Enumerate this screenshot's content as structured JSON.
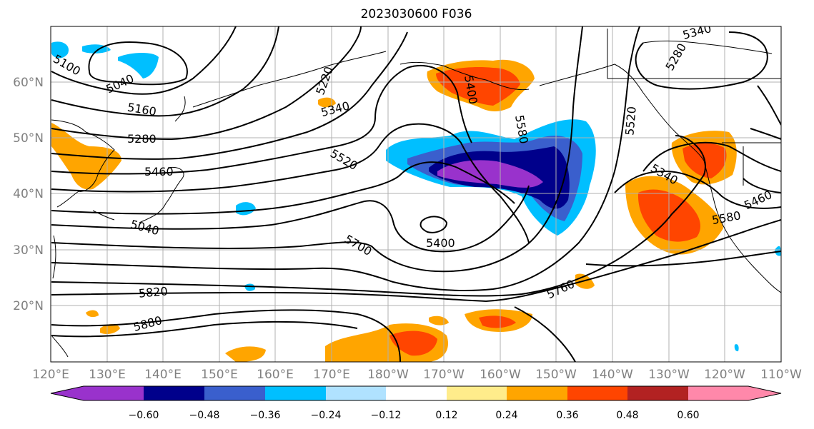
{
  "title": "2023030600 F036",
  "map": {
    "lon_ticks": [
      "120°E",
      "130°E",
      "140°E",
      "150°E",
      "160°E",
      "170°E",
      "180°W",
      "170°W",
      "160°W",
      "150°W",
      "140°W",
      "130°W",
      "120°W",
      "110°W"
    ],
    "lat_ticks": [
      "60°N",
      "50°N",
      "40°N",
      "30°N",
      "20°N"
    ],
    "contour_labels": [
      "5100",
      "5040",
      "5160",
      "5280",
      "5460",
      "5040",
      "5820",
      "5880",
      "5220",
      "5340",
      "5520",
      "5400",
      "5700",
      "5760",
      "5400",
      "5580",
      "5520",
      "5280",
      "5340",
      "5460",
      "5580",
      "5340"
    ]
  },
  "colorbar": {
    "ticks": [
      "−0.60",
      "−0.48",
      "−0.36",
      "−0.24",
      "−0.12",
      "0.12",
      "0.24",
      "0.36",
      "0.48",
      "0.60"
    ],
    "colors": [
      "#9932cc",
      "#00008b",
      "#3a5fcd",
      "#00bfff",
      "#b0e2ff",
      "#ffffff",
      "#ffec8b",
      "#ffa500",
      "#ff4500",
      "#b22222",
      "#ff88aa"
    ]
  }
}
